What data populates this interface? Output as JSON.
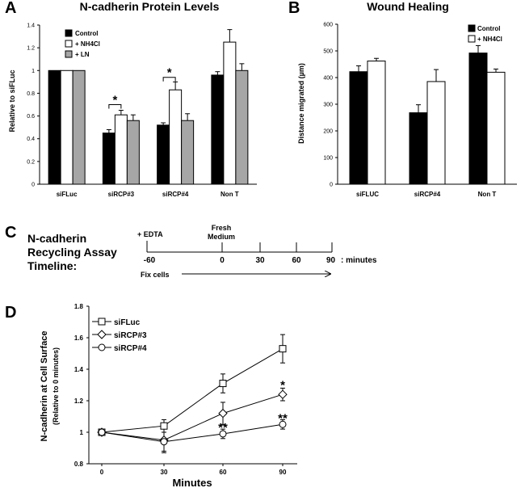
{
  "panels": {
    "a": "A",
    "b": "B",
    "c": "C",
    "d": "D"
  },
  "colors": {
    "control": "#000000",
    "nh4cl": "#ffffff",
    "ln": "#a6a6a6",
    "outline": "#000000"
  },
  "chart_data": [
    {
      "id": "A",
      "type": "bar",
      "title": "N-cadherin Protein Levels",
      "ylabel": "Relative to siFLuc",
      "xlabel": "",
      "ylim": [
        0,
        1.4
      ],
      "yticks": [
        "0",
        "0.2",
        "0.4",
        "0.6",
        "0.8",
        "1",
        "1.2",
        "1.4"
      ],
      "categories": [
        "siFLuc",
        "siRCP#3",
        "siRCP#4",
        "Non T"
      ],
      "series": [
        {
          "name": "Control",
          "color": "#000000",
          "values": [
            1.0,
            0.45,
            0.52,
            0.96
          ],
          "errors": [
            0,
            0.03,
            0.02,
            0.03
          ]
        },
        {
          "name": "+ NH4Cl",
          "color": "#ffffff",
          "values": [
            1.0,
            0.61,
            0.83,
            1.25
          ],
          "errors": [
            0,
            0.04,
            0.07,
            0.11
          ]
        },
        {
          "name": "+ LN",
          "color": "#a6a6a6",
          "values": [
            1.0,
            0.56,
            0.56,
            1.0
          ],
          "errors": [
            0,
            0.05,
            0.06,
            0.06
          ]
        }
      ],
      "legend": "top-right",
      "annotations": [
        {
          "text": "*",
          "category": "siRCP#3",
          "from": "Control",
          "to": "+ NH4Cl",
          "y": 0.7
        },
        {
          "text": "*",
          "category": "siRCP#4",
          "from": "Control",
          "to": "+ NH4Cl",
          "y": 0.94
        }
      ]
    },
    {
      "id": "B",
      "type": "bar",
      "title": "Wound Healing",
      "ylabel": "Distance migrated (µm)",
      "xlabel": "",
      "ylim": [
        0,
        600
      ],
      "yticks": [
        "0",
        "100",
        "200",
        "300",
        "400",
        "500",
        "600"
      ],
      "categories": [
        "siFLUC",
        "siRCP#4",
        "Non T"
      ],
      "series": [
        {
          "name": "Control",
          "color": "#000000",
          "values": [
            422,
            268,
            492
          ],
          "errors": [
            22,
            30,
            28
          ]
        },
        {
          "name": "+ NH4Cl",
          "color": "#ffffff",
          "values": [
            462,
            385,
            420
          ],
          "errors": [
            10,
            45,
            12
          ]
        }
      ],
      "legend": "top-right"
    },
    {
      "id": "D",
      "type": "line",
      "title": "",
      "ylabel": "N-cadherin at Cell Surface",
      "ylabel2": "(Relative to 0 minutes)",
      "xlabel": "Minutes",
      "x": [
        0,
        30,
        60,
        90
      ],
      "xticks": [
        "0",
        "30",
        "60",
        "90"
      ],
      "ylim": [
        0.8,
        1.8
      ],
      "yticks": [
        "0.8",
        "1",
        "1.2",
        "1.4",
        "1.6",
        "1.8"
      ],
      "series": [
        {
          "name": "siFLuc",
          "marker": "square",
          "values": [
            1.0,
            1.04,
            1.31,
            1.53
          ],
          "errors": [
            0.01,
            0.04,
            0.06,
            0.09
          ]
        },
        {
          "name": "siRCP#3",
          "marker": "diamond",
          "values": [
            1.0,
            0.95,
            1.12,
            1.24
          ],
          "errors": [
            0.01,
            0.08,
            0.07,
            0.04
          ]
        },
        {
          "name": "siRCP#4",
          "marker": "circle",
          "values": [
            1.0,
            0.94,
            0.99,
            1.05
          ],
          "errors": [
            0.01,
            0.06,
            0.03,
            0.03
          ]
        }
      ],
      "legend": "top-left",
      "annotations": [
        {
          "text": "*",
          "x": 90,
          "y": 1.3
        },
        {
          "text": "**",
          "x": 90,
          "y": 1.09
        },
        {
          "text": "**",
          "x": 60,
          "y": 1.03
        }
      ]
    }
  ],
  "timeline": {
    "title_lines": [
      "N-cadherin",
      "Recycling Assay",
      "Timeline:"
    ],
    "top_left_label": "+ EDTA",
    "top_mid_label_1": "Fresh",
    "top_mid_label_2": "Medium",
    "time_points": [
      "-60",
      "0",
      "30",
      "60",
      "90"
    ],
    "unit_label": ": minutes",
    "bottom_label": "Fix cells"
  }
}
